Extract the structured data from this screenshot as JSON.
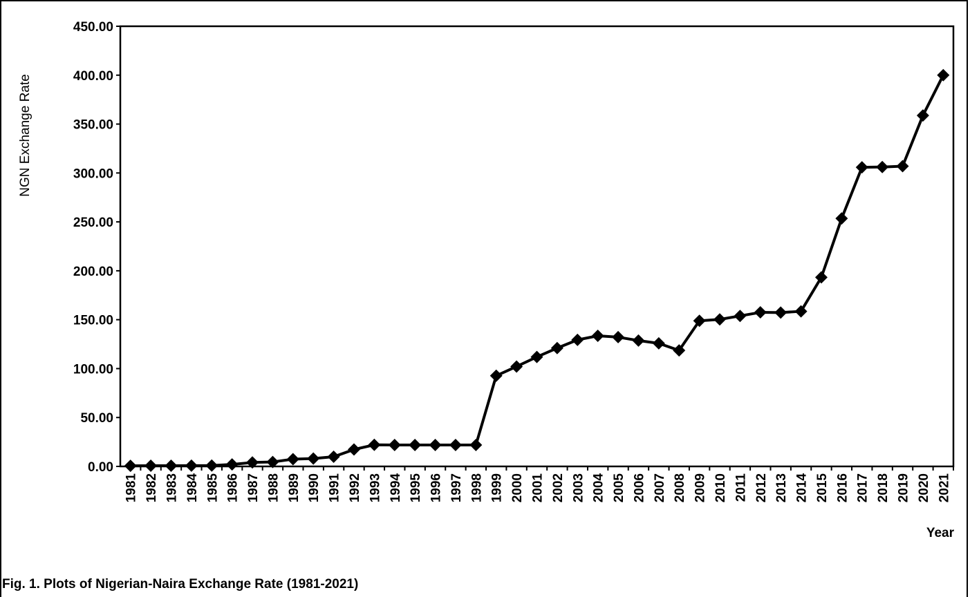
{
  "chart_data": {
    "type": "line",
    "title": "Fig. 1.  Plots of Nigerian-Naira Exchange Rate (1981-2021)",
    "y_label": "NGN Exchange Rate",
    "x_label": "Year",
    "color": "#000000",
    "categories": [
      "1981",
      "1982",
      "1983",
      "1984",
      "1985",
      "1986",
      "1987",
      "1988",
      "1989",
      "1990",
      "1991",
      "1992",
      "1993",
      "1994",
      "1995",
      "1996",
      "1997",
      "1998",
      "1999",
      "2000",
      "2001",
      "2002",
      "2003",
      "2004",
      "2005",
      "2006",
      "2007",
      "2008",
      "2009",
      "2010",
      "2011",
      "2012",
      "2013",
      "2014",
      "2015",
      "2016",
      "2017",
      "2018",
      "2019",
      "2020",
      "2021"
    ],
    "values": [
      0.6,
      0.67,
      0.72,
      0.77,
      0.89,
      2.02,
      4.02,
      4.54,
      7.39,
      8.04,
      9.91,
      17.3,
      22.05,
      21.89,
      21.89,
      21.89,
      21.89,
      21.89,
      92.69,
      102.1,
      111.9,
      120.97,
      129.36,
      133.5,
      132.15,
      128.65,
      125.83,
      118.57,
      148.88,
      150.3,
      153.86,
      157.5,
      157.31,
      158.55,
      193.28,
      253.49,
      305.79,
      306.08,
      306.92,
      358.81,
      400
    ],
    "ylim": [
      0,
      450
    ],
    "yticks": [
      {
        "value": 0,
        "label": "0.00"
      },
      {
        "value": 50,
        "label": "50.00"
      },
      {
        "value": 100,
        "label": "100.00"
      },
      {
        "value": 150,
        "label": "150.00"
      },
      {
        "value": 200,
        "label": "200.00"
      },
      {
        "value": 250,
        "label": "250.00"
      },
      {
        "value": 300,
        "label": "300.00"
      },
      {
        "value": 350,
        "label": "350.00"
      },
      {
        "value": 400,
        "label": "400.00"
      },
      {
        "value": 450,
        "label": "450.00"
      }
    ],
    "grid": false
  }
}
